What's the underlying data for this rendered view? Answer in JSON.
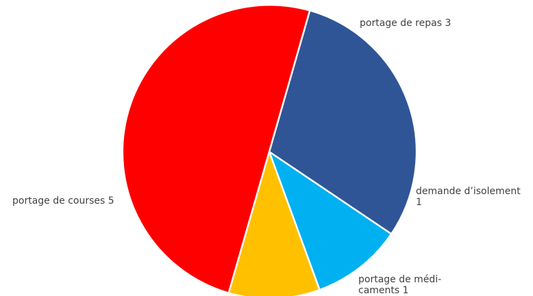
{
  "chart_data": {
    "type": "pie",
    "title": "",
    "slices": [
      {
        "category": "portage de repas",
        "value": 3,
        "color": "#2F5597",
        "label_lines": [
          "portage de repas 3"
        ]
      },
      {
        "category": "demande d’isolement",
        "value": 1,
        "color": "#00B0F0",
        "label_lines": [
          "demande d’isolement",
          "1"
        ]
      },
      {
        "category": "portage de médicaments",
        "value": 1,
        "color": "#FFC000",
        "label_lines": [
          "portage de médi-",
          "caments 1"
        ]
      },
      {
        "category": "portage de courses",
        "value": 5,
        "color": "#FF0000",
        "label_lines": [
          "portage de courses 5"
        ]
      }
    ],
    "start_angle_deg": 16,
    "direction": "clockwise",
    "legend": "none",
    "data_labels": "category and value, outside"
  }
}
